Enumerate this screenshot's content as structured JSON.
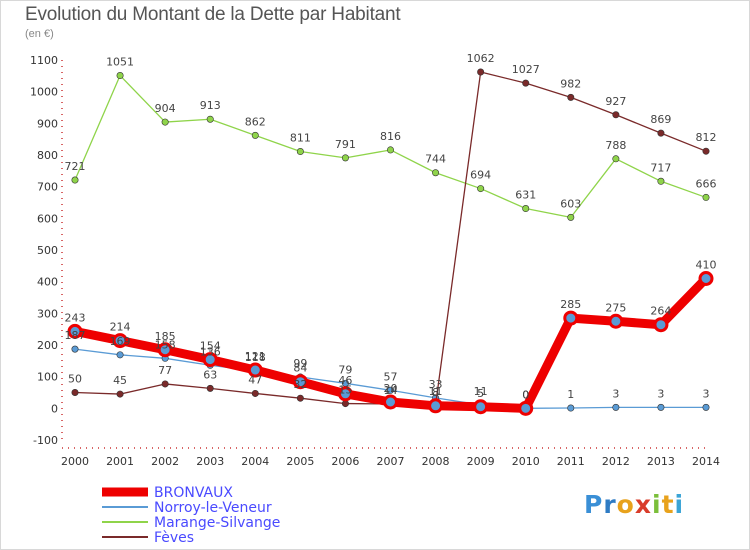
{
  "title": "Evolution du Montant de la Dette par Habitant",
  "subtitle": "(en €)",
  "logo": {
    "letters": [
      {
        "ch": "P",
        "color": "#3a8fd6"
      },
      {
        "ch": "r",
        "color": "#2e7bc4"
      },
      {
        "ch": "o",
        "color": "#e8a21c"
      },
      {
        "ch": "x",
        "color": "#d93c2a"
      },
      {
        "ch": "i",
        "color": "#7bbf3a"
      },
      {
        "ch": "t",
        "color": "#e8a21c"
      },
      {
        "ch": "i",
        "color": "#3aa4d6"
      }
    ]
  },
  "chart_data": {
    "type": "line",
    "title": "Evolution du Montant de la Dette par Habitant",
    "subtitle": "(en €)",
    "categories": [
      "2000",
      "2001",
      "2002",
      "2003",
      "2004",
      "2005",
      "2006",
      "2007",
      "2008",
      "2009",
      "2010",
      "2011",
      "2012",
      "2013",
      "2014"
    ],
    "ylim": [
      -100,
      1100
    ],
    "yticks": [
      -100,
      0,
      100,
      200,
      300,
      400,
      500,
      600,
      700,
      800,
      900,
      1000,
      1100
    ],
    "legend_position": "bottom-left",
    "grid": false,
    "series": [
      {
        "name": "BRONVAUX",
        "color": "#ee0000",
        "bold": true,
        "values": [
          243,
          214,
          185,
          154,
          121,
          84,
          46,
          20,
          8,
          5,
          0,
          285,
          275,
          264,
          410
        ],
        "labels": [
          "243",
          "214",
          "185",
          "154",
          "121",
          "84",
          "46",
          "20",
          "8",
          "5",
          "0",
          "285",
          "275",
          "264",
          "410"
        ]
      },
      {
        "name": "Norroy-le-Veneur",
        "color": "#5a9bd5",
        "bold": false,
        "values": [
          187,
          169,
          158,
          136,
          118,
          99,
          79,
          57,
          33,
          11,
          0,
          1,
          3,
          3,
          3
        ],
        "labels": [
          "187",
          "169",
          "158",
          "136",
          "118",
          "99",
          "79",
          "57",
          "33",
          "11",
          "0",
          "1",
          "3",
          "3",
          "3"
        ]
      },
      {
        "name": "Marange-Silvange",
        "color": "#8fd44a",
        "bold": false,
        "values": [
          721,
          1051,
          904,
          913,
          862,
          811,
          791,
          816,
          744,
          694,
          631,
          603,
          788,
          717,
          666
        ],
        "labels": [
          "721",
          "1051",
          "904",
          "913",
          "862",
          "811",
          "791",
          "816",
          "744",
          "694",
          "631",
          "603",
          "788",
          "717",
          "666"
        ]
      },
      {
        "name": "Fèves",
        "color": "#7a2a2a",
        "bold": false,
        "values": [
          50,
          45,
          77,
          63,
          47,
          32,
          15,
          14,
          11,
          1062,
          1027,
          982,
          927,
          869,
          812
        ],
        "labels": [
          "50",
          "45",
          "77",
          "63",
          "47",
          "32",
          "15",
          "14",
          "11",
          "1062",
          "1027",
          "982",
          "927",
          "869",
          "812"
        ]
      }
    ]
  }
}
